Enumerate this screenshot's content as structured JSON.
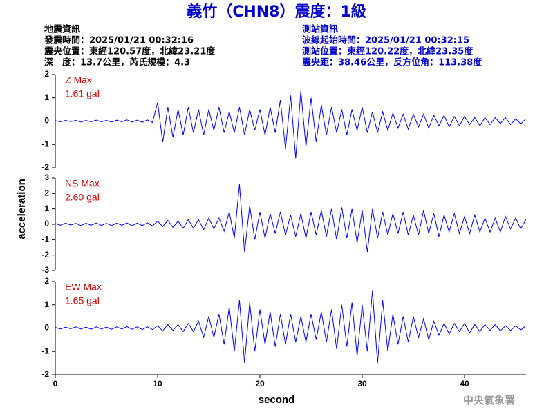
{
  "title": "義竹（CHN8）震度：1級",
  "event_info": [
    "地震資訊",
    "發震時間：2025/01/21 00:32:16",
    "震央位置：東經120.57度，北緯23.21度",
    "深　度：13.7公里，芮氏規模：4.3"
  ],
  "station_info": [
    "測站資訊",
    "波線起始時間：2025/01/21 00:32:15",
    "測站位置：東經120.22度，北緯23.35度",
    "震央距：38.46公里，反方位角：113.38度"
  ],
  "watermark": "中央氣象署",
  "chart_data": [
    {
      "type": "line",
      "label": "Z Max",
      "peak_label": "1.61 gal",
      "color": "#0000ff",
      "xlim": [
        0,
        46
      ],
      "ylim": [
        -2,
        2
      ],
      "yticks": [
        -2,
        -1,
        0,
        1,
        2
      ],
      "x": [
        0,
        0.5,
        1,
        1.5,
        2,
        2.5,
        3,
        3.5,
        4,
        4.5,
        5,
        5.5,
        6,
        6.5,
        7,
        7.5,
        8,
        8.5,
        9,
        9.5,
        10,
        10.5,
        11,
        11.5,
        12,
        12.5,
        13,
        13.5,
        14,
        14.5,
        15,
        15.5,
        16,
        16.5,
        17,
        17.5,
        18,
        18.5,
        19,
        19.5,
        20,
        20.5,
        21,
        21.5,
        22,
        22.5,
        23,
        23.5,
        24,
        24.5,
        25,
        25.5,
        26,
        26.5,
        27,
        27.5,
        28,
        28.5,
        29,
        29.5,
        30,
        30.5,
        31,
        31.5,
        32,
        32.5,
        33,
        33.5,
        34,
        34.5,
        35,
        35.5,
        36,
        36.5,
        37,
        37.5,
        38,
        38.5,
        39,
        39.5,
        40,
        40.5,
        41,
        41.5,
        42,
        42.5,
        43,
        43.5,
        44,
        44.5,
        45,
        45.5,
        46
      ],
      "values": [
        0.02,
        -0.03,
        0.03,
        -0.02,
        0.03,
        -0.04,
        0.03,
        -0.03,
        0.04,
        -0.03,
        0.03,
        -0.04,
        0.04,
        -0.03,
        0.05,
        -0.04,
        0.04,
        -0.05,
        0.05,
        -0.06,
        0.8,
        -0.9,
        0.6,
        -0.7,
        0.5,
        -0.6,
        0.6,
        -0.5,
        0.5,
        -0.6,
        0.5,
        -0.4,
        0.6,
        -0.5,
        0.4,
        -0.5,
        0.6,
        -0.6,
        0.5,
        -0.4,
        0.5,
        -0.6,
        0.6,
        -0.5,
        0.9,
        -1.2,
        1.1,
        -1.6,
        1.3,
        -1.1,
        1.0,
        -0.9,
        0.7,
        -0.6,
        0.6,
        -0.5,
        0.5,
        -0.6,
        0.5,
        -0.4,
        0.6,
        -0.5,
        0.4,
        -0.5,
        0.4,
        -0.4,
        0.35,
        -0.3,
        0.3,
        -0.35,
        0.3,
        -0.25,
        0.3,
        -0.3,
        0.25,
        -0.2,
        0.25,
        -0.25,
        0.2,
        -0.2,
        0.2,
        -0.15,
        0.15,
        -0.2,
        0.15,
        -0.15,
        0.15,
        -0.1,
        0.15,
        -0.15,
        0.1,
        -0.12,
        0.1
      ]
    },
    {
      "type": "line",
      "label": "NS Max",
      "peak_label": "2.60 gal",
      "color": "#0000ff",
      "ylabel": "acceleration",
      "xlim": [
        0,
        46
      ],
      "ylim": [
        -3,
        3
      ],
      "yticks": [
        -3,
        -2,
        -1,
        0,
        1,
        2,
        3
      ],
      "x": [
        0,
        0.5,
        1,
        1.5,
        2,
        2.5,
        3,
        3.5,
        4,
        4.5,
        5,
        5.5,
        6,
        6.5,
        7,
        7.5,
        8,
        8.5,
        9,
        9.5,
        10,
        10.5,
        11,
        11.5,
        12,
        12.5,
        13,
        13.5,
        14,
        14.5,
        15,
        15.5,
        16,
        16.5,
        17,
        17.5,
        18,
        18.5,
        19,
        19.5,
        20,
        20.5,
        21,
        21.5,
        22,
        22.5,
        23,
        23.5,
        24,
        24.5,
        25,
        25.5,
        26,
        26.5,
        27,
        27.5,
        28,
        28.5,
        29,
        29.5,
        30,
        30.5,
        31,
        31.5,
        32,
        32.5,
        33,
        33.5,
        34,
        34.5,
        35,
        35.5,
        36,
        36.5,
        37,
        37.5,
        38,
        38.5,
        39,
        39.5,
        40,
        40.5,
        41,
        41.5,
        42,
        42.5,
        43,
        43.5,
        44,
        44.5,
        45,
        45.5,
        46
      ],
      "values": [
        0.05,
        -0.06,
        0.07,
        -0.05,
        0.06,
        -0.08,
        0.07,
        -0.06,
        0.08,
        -0.07,
        0.06,
        -0.08,
        0.07,
        -0.06,
        0.08,
        -0.09,
        0.07,
        -0.08,
        0.09,
        -0.1,
        0.2,
        -0.15,
        0.25,
        -0.2,
        0.2,
        -0.25,
        0.3,
        -0.25,
        0.3,
        -0.35,
        0.4,
        -0.3,
        0.4,
        -0.45,
        0.8,
        -0.9,
        2.6,
        -1.8,
        1.2,
        -1.0,
        0.8,
        -0.9,
        0.7,
        -0.6,
        0.8,
        -0.7,
        0.6,
        -0.8,
        0.7,
        -0.9,
        0.8,
        -0.7,
        0.9,
        -0.8,
        1.0,
        -1.0,
        1.1,
        -0.9,
        1.0,
        -1.2,
        0.9,
        -1.8,
        1.0,
        -0.9,
        0.8,
        -0.7,
        0.7,
        -0.6,
        0.8,
        -0.7,
        0.6,
        -0.7,
        0.9,
        -0.6,
        0.7,
        -0.8,
        0.6,
        -0.5,
        0.7,
        -0.6,
        0.5,
        -0.6,
        0.6,
        -0.5,
        0.4,
        -0.5,
        0.4,
        -0.5,
        0.5,
        -0.3,
        0.4,
        -0.3,
        0.3
      ]
    },
    {
      "type": "line",
      "label": "EW Max",
      "peak_label": "1.65 gal",
      "color": "#0000ff",
      "xlabel": "second",
      "xlim": [
        0,
        46
      ],
      "ylim": [
        -2,
        2
      ],
      "yticks": [
        -2,
        -1,
        0,
        1,
        2
      ],
      "xticks": [
        0,
        10,
        20,
        30,
        40
      ],
      "x": [
        0,
        0.5,
        1,
        1.5,
        2,
        2.5,
        3,
        3.5,
        4,
        4.5,
        5,
        5.5,
        6,
        6.5,
        7,
        7.5,
        8,
        8.5,
        9,
        9.5,
        10,
        10.5,
        11,
        11.5,
        12,
        12.5,
        13,
        13.5,
        14,
        14.5,
        15,
        15.5,
        16,
        16.5,
        17,
        17.5,
        18,
        18.5,
        19,
        19.5,
        20,
        20.5,
        21,
        21.5,
        22,
        22.5,
        23,
        23.5,
        24,
        24.5,
        25,
        25.5,
        26,
        26.5,
        27,
        27.5,
        28,
        28.5,
        29,
        29.5,
        30,
        30.5,
        31,
        31.5,
        32,
        32.5,
        33,
        33.5,
        34,
        34.5,
        35,
        35.5,
        36,
        36.5,
        37,
        37.5,
        38,
        38.5,
        39,
        39.5,
        40,
        40.5,
        41,
        41.5,
        42,
        42.5,
        43,
        43.5,
        44,
        44.5,
        45,
        45.5,
        46
      ],
      "values": [
        0.03,
        -0.04,
        0.04,
        -0.03,
        0.05,
        -0.04,
        0.04,
        -0.05,
        0.05,
        -0.04,
        0.04,
        -0.05,
        0.05,
        -0.04,
        0.06,
        -0.05,
        0.05,
        -0.06,
        0.05,
        -0.06,
        0.1,
        -0.12,
        0.15,
        -0.1,
        0.15,
        -0.15,
        0.2,
        -0.15,
        0.3,
        -0.4,
        0.5,
        -0.4,
        0.6,
        -0.7,
        0.9,
        -1.0,
        1.2,
        -1.5,
        1.1,
        -1.0,
        0.8,
        -0.7,
        0.7,
        -0.8,
        0.6,
        -0.7,
        0.6,
        -0.6,
        0.5,
        -0.6,
        0.6,
        -0.5,
        0.7,
        -0.6,
        0.8,
        -0.9,
        1.0,
        -0.8,
        1.1,
        -1.2,
        1.0,
        -1.0,
        1.6,
        -1.5,
        1.2,
        -1.0,
        0.6,
        -0.7,
        0.5,
        -0.6,
        0.5,
        -0.4,
        0.4,
        -0.5,
        0.3,
        -0.3,
        0.2,
        -0.25,
        0.2,
        -0.15,
        0.2,
        -0.2,
        0.15,
        -0.15,
        0.15,
        -0.1,
        0.15,
        -0.12,
        0.1,
        -0.1,
        0.1,
        -0.08,
        0.1
      ]
    }
  ]
}
